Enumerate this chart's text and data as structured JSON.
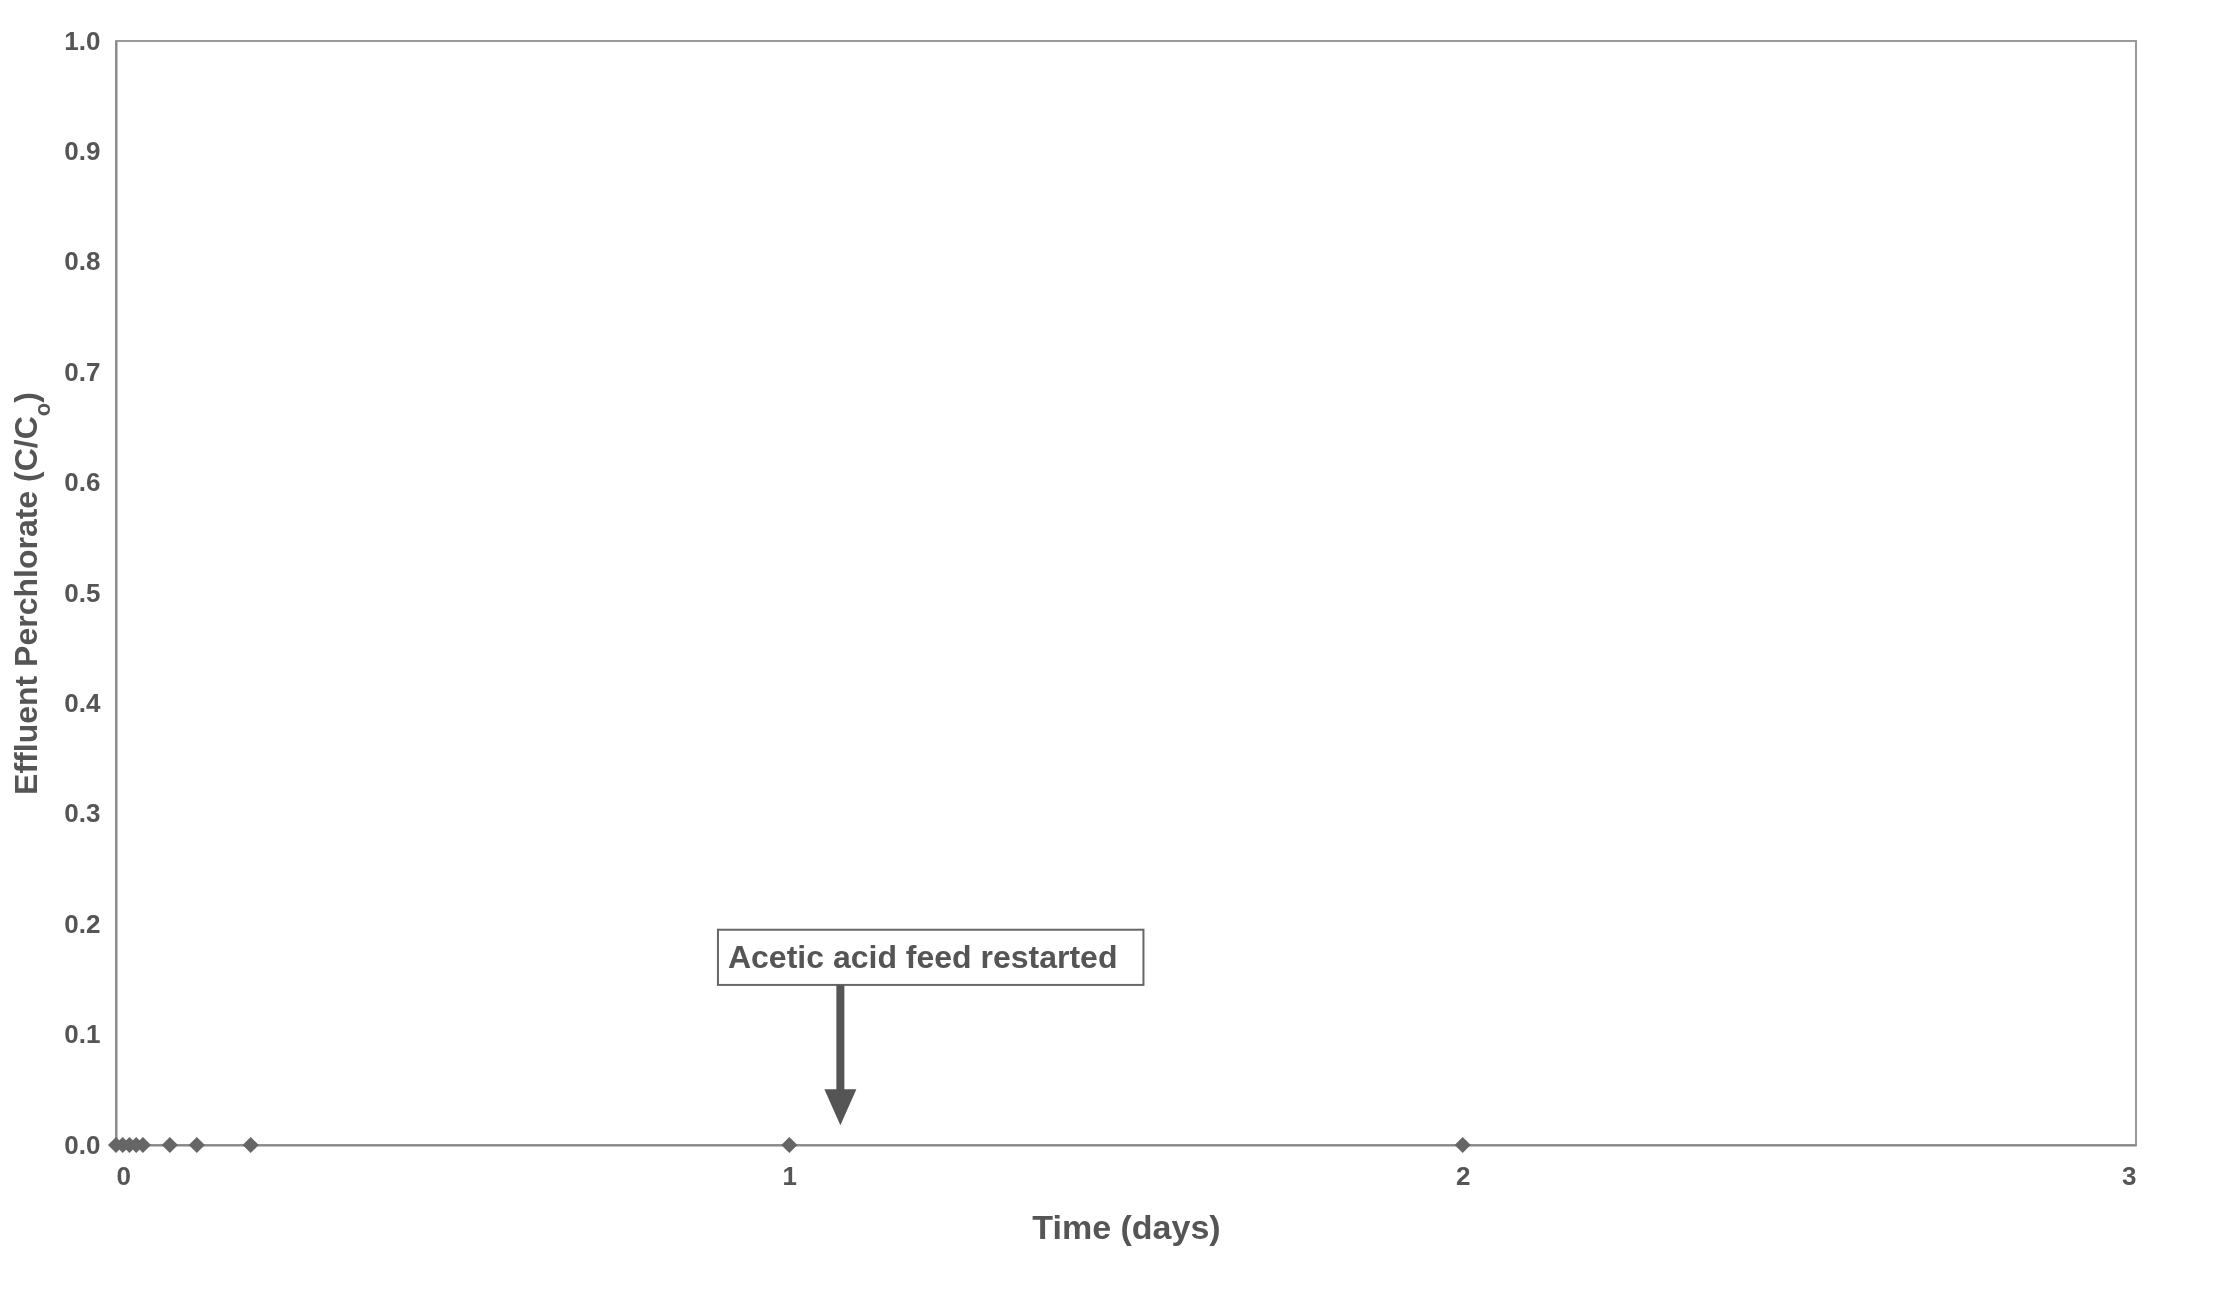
{
  "chart_data": {
    "type": "scatter",
    "xlabel": "Time (days)",
    "ylabel": "Effluent Perchlorate (C/C$_{o}$)",
    "x": [
      0,
      0.01,
      0.02,
      0.03,
      0.04,
      0.08,
      0.12,
      0.2,
      1,
      2
    ],
    "series": [
      {
        "color": "#666666",
        "values": [
          0,
          0,
          0,
          0,
          0,
          0,
          0,
          0,
          0,
          0
        ]
      }
    ],
    "marker": "diamond",
    "xlim": [
      0,
      3
    ],
    "xticks": [
      0,
      1,
      2,
      3
    ],
    "ylim": [
      0,
      1
    ],
    "yticks": [
      {
        "value": 0,
        "label": "0.0"
      },
      {
        "value": 0.1,
        "label": "0.1"
      },
      {
        "value": 0.2,
        "label": "0.2"
      },
      {
        "value": 0.3,
        "label": "0.3"
      },
      {
        "value": 0.4,
        "label": "0.4"
      },
      {
        "value": 0.5,
        "label": "0.5"
      },
      {
        "value": 0.6,
        "label": "0.6"
      },
      {
        "value": 0.7,
        "label": "0.7"
      },
      {
        "value": 0.8,
        "label": "0.8"
      },
      {
        "value": 0.9,
        "label": "0.9"
      },
      {
        "value": 1,
        "label": "1.0"
      }
    ],
    "grid": false,
    "legend": false,
    "annotations": [
      "Acetic acid feed restarted"
    ]
  }
}
